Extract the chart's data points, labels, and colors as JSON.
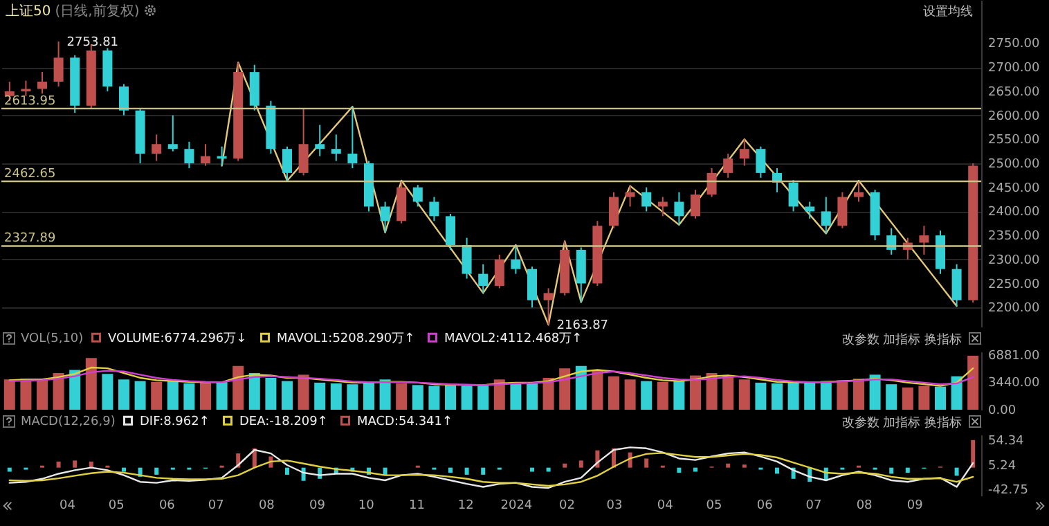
{
  "chart_data": [
    {
      "type": "candlestick",
      "title": "上证50",
      "subtitle": "(日线,前复权)",
      "annotations": [
        "设置均线",
        {
          "text": "2753.81",
          "x": "2023-03-27",
          "y": 2753.81
        },
        {
          "text": "2163.87",
          "x": "2024-01-21",
          "y": 2163.87
        }
      ],
      "x": [
        "2023-02-25",
        "2023-03-07",
        "2023-03-17",
        "2023-03-27",
        "2023-04-06",
        "2023-04-16",
        "2023-04-26",
        "2023-05-06",
        "2023-05-16",
        "2023-05-26",
        "2023-06-05",
        "2023-06-15",
        "2023-06-25",
        "2023-07-05",
        "2023-07-15",
        "2023-07-25",
        "2023-08-04",
        "2023-08-14",
        "2023-08-24",
        "2023-09-03",
        "2023-09-13",
        "2023-09-23",
        "2023-10-03",
        "2023-10-13",
        "2023-10-23",
        "2023-11-02",
        "2023-11-12",
        "2023-11-22",
        "2023-12-02",
        "2023-12-12",
        "2023-12-22",
        "2024-01-01",
        "2024-01-11",
        "2024-01-21",
        "2024-01-31",
        "2024-02-10",
        "2024-02-20",
        "2024-03-01",
        "2024-03-11",
        "2024-03-21",
        "2024-03-31",
        "2024-04-10",
        "2024-04-20",
        "2024-04-30",
        "2024-05-10",
        "2024-05-20",
        "2024-05-30",
        "2024-06-09",
        "2024-06-19",
        "2024-06-29",
        "2024-07-09",
        "2024-07-19",
        "2024-07-29",
        "2024-08-08",
        "2024-08-18",
        "2024-08-28",
        "2024-09-07",
        "2024-09-17",
        "2024-09-27",
        "2024-10-07"
      ],
      "ohlc": [
        [
          2640,
          2670,
          2630,
          2650
        ],
        [
          2650,
          2672,
          2640,
          2655
        ],
        [
          2655,
          2690,
          2645,
          2670
        ],
        [
          2670,
          2753.81,
          2660,
          2720
        ],
        [
          2720,
          2725,
          2605,
          2620
        ],
        [
          2620,
          2748,
          2615,
          2735
        ],
        [
          2735,
          2740,
          2650,
          2660
        ],
        [
          2660,
          2665,
          2600,
          2610
        ],
        [
          2610,
          2615,
          2500,
          2520
        ],
        [
          2520,
          2560,
          2505,
          2540
        ],
        [
          2540,
          2600,
          2525,
          2530
        ],
        [
          2530,
          2545,
          2490,
          2500
        ],
        [
          2500,
          2540,
          2495,
          2515
        ],
        [
          2515,
          2535,
          2495,
          2510
        ],
        [
          2510,
          2710,
          2505,
          2690
        ],
        [
          2690,
          2705,
          2610,
          2620
        ],
        [
          2620,
          2630,
          2520,
          2530
        ],
        [
          2530,
          2535,
          2464,
          2480
        ],
        [
          2480,
          2615,
          2475,
          2540
        ],
        [
          2540,
          2580,
          2515,
          2530
        ],
        [
          2530,
          2560,
          2505,
          2520
        ],
        [
          2520,
          2618,
          2490,
          2500
        ],
        [
          2500,
          2505,
          2400,
          2410
        ],
        [
          2410,
          2420,
          2356,
          2380
        ],
        [
          2380,
          2464,
          2375,
          2450
        ],
        [
          2450,
          2455,
          2410,
          2420
        ],
        [
          2420,
          2430,
          2380,
          2390
        ],
        [
          2390,
          2395,
          2320,
          2330
        ],
        [
          2330,
          2345,
          2260,
          2270
        ],
        [
          2270,
          2290,
          2230,
          2245
        ],
        [
          2245,
          2310,
          2240,
          2300
        ],
        [
          2300,
          2330,
          2270,
          2280
        ],
        [
          2280,
          2285,
          2200,
          2215
        ],
        [
          2215,
          2240,
          2163.87,
          2230
        ],
        [
          2230,
          2338,
          2225,
          2320
        ],
        [
          2320,
          2325,
          2211,
          2250
        ],
        [
          2250,
          2380,
          2245,
          2370
        ],
        [
          2370,
          2440,
          2365,
          2430
        ],
        [
          2430,
          2453,
          2410,
          2440
        ],
        [
          2440,
          2450,
          2400,
          2410
        ],
        [
          2410,
          2430,
          2390,
          2420
        ],
        [
          2420,
          2440,
          2372,
          2390
        ],
        [
          2390,
          2445,
          2385,
          2435
        ],
        [
          2435,
          2490,
          2430,
          2480
        ],
        [
          2480,
          2520,
          2470,
          2510
        ],
        [
          2510,
          2550,
          2495,
          2530
        ],
        [
          2530,
          2535,
          2470,
          2480
        ],
        [
          2480,
          2490,
          2440,
          2460
        ],
        [
          2460,
          2465,
          2400,
          2410
        ],
        [
          2410,
          2420,
          2385,
          2400
        ],
        [
          2400,
          2430,
          2354,
          2370
        ],
        [
          2370,
          2440,
          2365,
          2430
        ],
        [
          2430,
          2464,
          2420,
          2440
        ],
        [
          2440,
          2445,
          2340,
          2350
        ],
        [
          2350,
          2365,
          2310,
          2320
        ],
        [
          2320,
          2345,
          2300,
          2335
        ],
        [
          2335,
          2370,
          2310,
          2350
        ],
        [
          2350,
          2360,
          2270,
          2280
        ],
        [
          2280,
          2290,
          2203,
          2215
        ],
        [
          2215,
          2500,
          2210,
          2495
        ]
      ],
      "colors": [
        "#c0504d",
        "#c0504d",
        "#c0504d",
        "#c0504d",
        "#33d1d6",
        "#c0504d",
        "#33d1d6",
        "#33d1d6",
        "#33d1d6",
        "#c0504d",
        "#33d1d6",
        "#33d1d6",
        "#c0504d",
        "#33d1d6",
        "#c0504d",
        "#33d1d6",
        "#33d1d6",
        "#33d1d6",
        "#c0504d",
        "#33d1d6",
        "#33d1d6",
        "#33d1d6",
        "#33d1d6",
        "#33d1d6",
        "#c0504d",
        "#33d1d6",
        "#33d1d6",
        "#33d1d6",
        "#33d1d6",
        "#33d1d6",
        "#c0504d",
        "#33d1d6",
        "#33d1d6",
        "#c0504d",
        "#c0504d",
        "#33d1d6",
        "#c0504d",
        "#c0504d",
        "#c0504d",
        "#33d1d6",
        "#c0504d",
        "#33d1d6",
        "#c0504d",
        "#c0504d",
        "#c0504d",
        "#c0504d",
        "#33d1d6",
        "#33d1d6",
        "#33d1d6",
        "#33d1d6",
        "#33d1d6",
        "#c0504d",
        "#c0504d",
        "#33d1d6",
        "#33d1d6",
        "#c0504d",
        "#c0504d",
        "#33d1d6",
        "#33d1d6",
        "#c0504d"
      ],
      "series": [
        {
          "type": "line",
          "color": "#e3c77a",
          "x": [
            "2023-07-05",
            "2023-07-15",
            "2023-08-14",
            "2023-09-23",
            "2023-10-13",
            "2023-10-23",
            "2023-12-12",
            "2024-01-01",
            "2024-01-21",
            "2024-01-31",
            "2024-02-10",
            "2024-03-11",
            "2024-04-10",
            "2024-05-20",
            "2024-07-09",
            "2024-07-29",
            "2024-09-27"
          ],
          "values": [
            2495,
            2710,
            2464,
            2618,
            2356,
            2464,
            2230,
            2330,
            2163.87,
            2338,
            2211,
            2453,
            2372,
            2550,
            2354,
            2464,
            2203
          ]
        }
      ],
      "ref_lines": [
        {
          "axis": "y",
          "value": 2613.95,
          "label": "2613.95",
          "color": "#c9c08a"
        },
        {
          "axis": "y",
          "value": 2462.65,
          "label": "2462.65",
          "color": "#c9c08a"
        },
        {
          "axis": "y",
          "value": 2327.89,
          "label": "2327.89",
          "color": "#c9c08a"
        }
      ],
      "xlim": [
        "2023-02-20",
        "2024-10-12"
      ],
      "ylim": [
        2160,
        2840
      ],
      "yticks": [
        {
          "value": 2200,
          "label": "2200.00"
        },
        {
          "value": 2250,
          "label": "2250.00"
        },
        {
          "value": 2300,
          "label": "2300.00"
        },
        {
          "value": 2350,
          "label": "2350.00"
        },
        {
          "value": 2400,
          "label": "2400.00"
        },
        {
          "value": 2450,
          "label": "2450.00"
        },
        {
          "value": 2500,
          "label": "2500.00"
        },
        {
          "value": 2550,
          "label": "2550.00"
        },
        {
          "value": 2600,
          "label": "2600.00"
        },
        {
          "value": 2650,
          "label": "2650.00"
        },
        {
          "value": 2700,
          "label": "2700.00"
        },
        {
          "value": 2750,
          "label": "2750.00"
        }
      ],
      "grid": "y",
      "tick_labels": "y"
    },
    {
      "type": "bar",
      "legend_title": "VOL(5,10)",
      "legend": "top left",
      "annotations": [
        "改参数 加指标 换指标"
      ],
      "x": [
        "2023-02-25",
        "2023-03-07",
        "2023-03-17",
        "2023-03-27",
        "2023-04-06",
        "2023-04-16",
        "2023-04-26",
        "2023-05-06",
        "2023-05-16",
        "2023-05-26",
        "2023-06-05",
        "2023-06-15",
        "2023-06-25",
        "2023-07-05",
        "2023-07-15",
        "2023-07-25",
        "2023-08-04",
        "2023-08-14",
        "2023-08-24",
        "2023-09-03",
        "2023-09-13",
        "2023-09-23",
        "2023-10-03",
        "2023-10-13",
        "2023-10-23",
        "2023-11-02",
        "2023-11-12",
        "2023-11-22",
        "2023-12-02",
        "2023-12-12",
        "2023-12-22",
        "2024-01-01",
        "2024-01-11",
        "2024-01-21",
        "2024-01-31",
        "2024-02-10",
        "2024-02-20",
        "2024-03-01",
        "2024-03-11",
        "2024-03-21",
        "2024-03-31",
        "2024-04-10",
        "2024-04-20",
        "2024-04-30",
        "2024-05-10",
        "2024-05-20",
        "2024-05-30",
        "2024-06-09",
        "2024-06-19",
        "2024-06-29",
        "2024-07-09",
        "2024-07-19",
        "2024-07-29",
        "2024-08-08",
        "2024-08-18",
        "2024-08-28",
        "2024-09-07",
        "2024-09-17",
        "2024-09-27",
        "2024-10-07"
      ],
      "series": [
        {
          "name": "VOLUME:6774.296万↓",
          "type": "bar",
          "values": [
            3800,
            3900,
            3700,
            4600,
            5000,
            6500,
            4500,
            3800,
            3600,
            3500,
            3700,
            3300,
            3400,
            3500,
            5500,
            4600,
            4000,
            3600,
            4400,
            3400,
            3300,
            3200,
            3500,
            3800,
            3300,
            3100,
            3000,
            3200,
            3000,
            3100,
            3800,
            3400,
            3300,
            4000,
            5200,
            5500,
            5000,
            4200,
            3800,
            3600,
            3500,
            3600,
            4300,
            4600,
            4200,
            3800,
            3400,
            3300,
            3500,
            3400,
            3600,
            3700,
            3900,
            4400,
            3200,
            2800,
            3000,
            2900,
            4200,
            6774.296
          ],
          "colors": [
            "#c0504d",
            "#c0504d",
            "#c0504d",
            "#c0504d",
            "#33d1d6",
            "#c0504d",
            "#33d1d6",
            "#33d1d6",
            "#33d1d6",
            "#c0504d",
            "#33d1d6",
            "#33d1d6",
            "#c0504d",
            "#33d1d6",
            "#c0504d",
            "#33d1d6",
            "#33d1d6",
            "#33d1d6",
            "#c0504d",
            "#33d1d6",
            "#33d1d6",
            "#33d1d6",
            "#33d1d6",
            "#33d1d6",
            "#c0504d",
            "#33d1d6",
            "#33d1d6",
            "#33d1d6",
            "#33d1d6",
            "#33d1d6",
            "#c0504d",
            "#33d1d6",
            "#33d1d6",
            "#c0504d",
            "#c0504d",
            "#33d1d6",
            "#c0504d",
            "#c0504d",
            "#c0504d",
            "#33d1d6",
            "#c0504d",
            "#33d1d6",
            "#c0504d",
            "#c0504d",
            "#c0504d",
            "#c0504d",
            "#33d1d6",
            "#33d1d6",
            "#33d1d6",
            "#33d1d6",
            "#33d1d6",
            "#c0504d",
            "#c0504d",
            "#33d1d6",
            "#33d1d6",
            "#c0504d",
            "#c0504d",
            "#33d1d6",
            "#33d1d6",
            "#c0504d"
          ]
        },
        {
          "name": "MAVOL1:5208.290万↑",
          "type": "line",
          "color": "#e0d040",
          "values": [
            3700,
            3800,
            3800,
            4100,
            4500,
            5300,
            5200,
            4600,
            4000,
            3700,
            3600,
            3500,
            3450,
            3450,
            4100,
            4400,
            4300,
            4000,
            4000,
            3800,
            3600,
            3400,
            3400,
            3500,
            3500,
            3400,
            3200,
            3150,
            3100,
            3100,
            3300,
            3400,
            3400,
            3600,
            4200,
            4800,
            5000,
            4800,
            4400,
            4000,
            3700,
            3600,
            3800,
            4200,
            4300,
            4100,
            3800,
            3500,
            3450,
            3400,
            3500,
            3600,
            3700,
            3900,
            3700,
            3400,
            3200,
            3000,
            3400,
            5208.29
          ]
        },
        {
          "name": "MAVOL2:4112.468万↑",
          "type": "line",
          "color": "#d040d0",
          "values": [
            3600,
            3650,
            3700,
            3900,
            4200,
            4700,
            4900,
            4800,
            4400,
            4000,
            3750,
            3600,
            3500,
            3450,
            3800,
            4100,
            4200,
            4100,
            4000,
            3900,
            3750,
            3550,
            3450,
            3450,
            3450,
            3400,
            3300,
            3200,
            3150,
            3100,
            3200,
            3300,
            3350,
            3450,
            3800,
            4200,
            4600,
            4800,
            4600,
            4300,
            4000,
            3800,
            3750,
            3900,
            4100,
            4200,
            4000,
            3750,
            3550,
            3450,
            3450,
            3550,
            3650,
            3800,
            3800,
            3600,
            3400,
            3200,
            3300,
            4112.468
          ]
        }
      ],
      "xlim": [
        "2023-02-20",
        "2024-10-12"
      ],
      "ylim": [
        0,
        7300
      ],
      "yticks": [
        {
          "value": 0,
          "label": "0.00"
        },
        {
          "value": 3440,
          "label": "3440.00"
        },
        {
          "value": 6881,
          "label": "6881.00"
        }
      ],
      "tick_labels": "y"
    },
    {
      "type": "bar",
      "legend_title": "MACD(12,26,9)",
      "legend": "top left",
      "annotations": [
        "改参数 加指标 换指标"
      ],
      "x": [
        "2023-02-25",
        "2023-03-07",
        "2023-03-17",
        "2023-03-27",
        "2023-04-06",
        "2023-04-16",
        "2023-04-26",
        "2023-05-06",
        "2023-05-16",
        "2023-05-26",
        "2023-06-05",
        "2023-06-15",
        "2023-06-25",
        "2023-07-05",
        "2023-07-15",
        "2023-07-25",
        "2023-08-04",
        "2023-08-14",
        "2023-08-24",
        "2023-09-03",
        "2023-09-13",
        "2023-09-23",
        "2023-10-03",
        "2023-10-13",
        "2023-10-23",
        "2023-11-02",
        "2023-11-12",
        "2023-11-22",
        "2023-12-02",
        "2023-12-12",
        "2023-12-22",
        "2024-01-01",
        "2024-01-11",
        "2024-01-21",
        "2024-01-31",
        "2024-02-10",
        "2024-02-20",
        "2024-03-01",
        "2024-03-11",
        "2024-03-21",
        "2024-03-31",
        "2024-04-10",
        "2024-04-20",
        "2024-04-30",
        "2024-05-10",
        "2024-05-20",
        "2024-05-30",
        "2024-06-09",
        "2024-06-19",
        "2024-06-29",
        "2024-07-09",
        "2024-07-19",
        "2024-07-29",
        "2024-08-08",
        "2024-08-18",
        "2024-08-28",
        "2024-09-07",
        "2024-09-17",
        "2024-09-27",
        "2024-10-07"
      ],
      "series": [
        {
          "name": "DIF:8.962↑",
          "type": "line",
          "color": "#e8e8e8",
          "values": [
            -30,
            -28,
            -22,
            -12,
            -5,
            0,
            -5,
            -15,
            -28,
            -30,
            -25,
            -26,
            -24,
            -20,
            5,
            35,
            28,
            5,
            -10,
            -15,
            -12,
            -12,
            -20,
            -25,
            -15,
            -12,
            -18,
            -25,
            -32,
            -38,
            -32,
            -30,
            -38,
            -40,
            -28,
            -20,
            10,
            35,
            40,
            38,
            30,
            18,
            15,
            22,
            28,
            30,
            22,
            12,
            -5,
            -18,
            -25,
            -15,
            -8,
            -15,
            -25,
            -28,
            -22,
            -20,
            -38,
            8.962
          ]
        },
        {
          "name": "DEA:-18.209↑",
          "type": "line",
          "color": "#e0d040",
          "values": [
            -25,
            -26,
            -25,
            -21,
            -16,
            -11,
            -8,
            -10,
            -15,
            -20,
            -22,
            -23,
            -23,
            -22,
            -15,
            0,
            12,
            14,
            8,
            2,
            -3,
            -6,
            -10,
            -15,
            -15,
            -14,
            -15,
            -18,
            -22,
            -28,
            -30,
            -30,
            -33,
            -36,
            -33,
            -28,
            -16,
            2,
            18,
            27,
            29,
            25,
            21,
            21,
            24,
            27,
            25,
            20,
            10,
            0,
            -10,
            -12,
            -10,
            -12,
            -18,
            -22,
            -22,
            -21,
            -28,
            -18.209
          ]
        },
        {
          "name": "MACD:54.341↑",
          "type": "bar",
          "values": [
            -8,
            -4,
            4,
            12,
            14,
            12,
            4,
            -8,
            -18,
            -14,
            -4,
            -4,
            -2,
            4,
            28,
            38,
            22,
            -14,
            -26,
            -22,
            -12,
            -8,
            -14,
            -14,
            0,
            4,
            -4,
            -10,
            -14,
            -14,
            -4,
            0,
            -8,
            -8,
            8,
            14,
            34,
            38,
            30,
            18,
            4,
            -10,
            -8,
            2,
            8,
            6,
            -4,
            -12,
            -22,
            -28,
            -24,
            -4,
            4,
            -4,
            -12,
            -10,
            -2,
            2,
            -16,
            54.341
          ],
          "colors": [
            "#33d1d6",
            "#33d1d6",
            "#c0504d",
            "#c0504d",
            "#c0504d",
            "#c0504d",
            "#c0504d",
            "#33d1d6",
            "#33d1d6",
            "#33d1d6",
            "#33d1d6",
            "#33d1d6",
            "#33d1d6",
            "#c0504d",
            "#c0504d",
            "#c0504d",
            "#c0504d",
            "#33d1d6",
            "#33d1d6",
            "#33d1d6",
            "#33d1d6",
            "#33d1d6",
            "#33d1d6",
            "#33d1d6",
            "#c0504d",
            "#c0504d",
            "#33d1d6",
            "#33d1d6",
            "#33d1d6",
            "#33d1d6",
            "#33d1d6",
            "#c0504d",
            "#33d1d6",
            "#33d1d6",
            "#c0504d",
            "#c0504d",
            "#c0504d",
            "#c0504d",
            "#c0504d",
            "#c0504d",
            "#c0504d",
            "#33d1d6",
            "#33d1d6",
            "#c0504d",
            "#c0504d",
            "#c0504d",
            "#33d1d6",
            "#33d1d6",
            "#33d1d6",
            "#33d1d6",
            "#33d1d6",
            "#33d1d6",
            "#c0504d",
            "#33d1d6",
            "#33d1d6",
            "#33d1d6",
            "#33d1d6",
            "#c0504d",
            "#33d1d6",
            "#c0504d"
          ]
        }
      ],
      "xlim": [
        "2023-02-20",
        "2024-10-12"
      ],
      "ylim": [
        -55,
        65
      ],
      "xticks": [
        {
          "value": "2023-04-01",
          "label": "04"
        },
        {
          "value": "2023-05-01",
          "label": "05"
        },
        {
          "value": "2023-06-01",
          "label": "06"
        },
        {
          "value": "2023-07-01",
          "label": "07"
        },
        {
          "value": "2023-08-01",
          "label": "08"
        },
        {
          "value": "2023-09-01",
          "label": "09"
        },
        {
          "value": "2023-10-01",
          "label": "10"
        },
        {
          "value": "2023-11-01",
          "label": "11"
        },
        {
          "value": "2023-12-01",
          "label": "12"
        },
        {
          "value": "2024-01-01",
          "label": "2024"
        },
        {
          "value": "2024-02-01",
          "label": "02"
        },
        {
          "value": "2024-03-01",
          "label": "03"
        },
        {
          "value": "2024-04-01",
          "label": "04"
        },
        {
          "value": "2024-05-01",
          "label": "05"
        },
        {
          "value": "2024-06-01",
          "label": "06"
        },
        {
          "value": "2024-07-01",
          "label": "07"
        },
        {
          "value": "2024-08-01",
          "label": "08"
        },
        {
          "value": "2024-09-01",
          "label": "09"
        }
      ],
      "yticks": [
        {
          "value": -42.75,
          "label": "-42.75"
        },
        {
          "value": 5.24,
          "label": "5.24"
        },
        {
          "value": 54.34,
          "label": "54.34"
        }
      ]
    }
  ]
}
